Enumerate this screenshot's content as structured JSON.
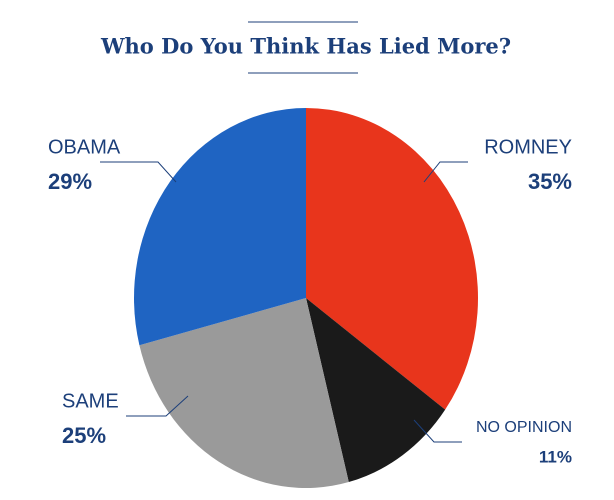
{
  "chart_data": {
    "type": "pie",
    "title": "Who Do You Think Has Lied More?",
    "categories": [
      "ROMNEY",
      "NO OPINION",
      "SAME",
      "OBAMA"
    ],
    "values": [
      35,
      11,
      25,
      29
    ],
    "value_labels": [
      "35%",
      "11%",
      "25%",
      "29%"
    ],
    "colors": [
      "#e8351c",
      "#1a1a1a",
      "#9a9a9a",
      "#1f64c2"
    ]
  }
}
